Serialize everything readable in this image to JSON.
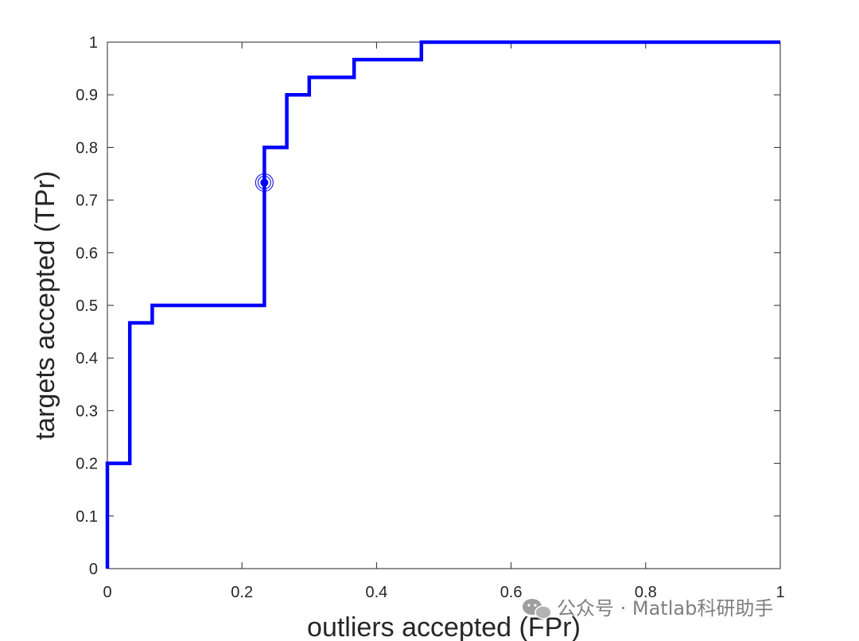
{
  "chart_data": {
    "type": "line",
    "title": "",
    "xlabel": "outliers accepted (FPr)",
    "ylabel": "targets accepted (TPr)",
    "xlim": [
      0,
      1
    ],
    "ylim": [
      0,
      1
    ],
    "xticks": [
      "0",
      "0.2",
      "0.4",
      "0.6",
      "0.8",
      "1"
    ],
    "yticks": [
      "0",
      "0.1",
      "0.2",
      "0.3",
      "0.4",
      "0.5",
      "0.6",
      "0.7",
      "0.8",
      "0.9",
      "1"
    ],
    "grid": false,
    "colors": {
      "series": "#0000ff",
      "axes": "#262626"
    },
    "series": [
      {
        "x": [
          0,
          0,
          0.0333,
          0.0333,
          0.0667,
          0.0667,
          0.2333,
          0.2333,
          0.2667,
          0.2667,
          0.3,
          0.3,
          0.3667,
          0.3667,
          0.4667,
          0.4667,
          1
        ],
        "y": [
          0,
          0.2,
          0.2,
          0.4667,
          0.4667,
          0.5,
          0.5,
          0.8,
          0.8,
          0.9,
          0.9,
          0.9333,
          0.9333,
          0.9667,
          0.9667,
          1,
          1
        ]
      }
    ],
    "marked_point": {
      "x": 0.2333,
      "y": 0.7333
    }
  },
  "watermark": {
    "text": "公众号 · Matlab科研助手",
    "icon": "wechat-icon"
  }
}
